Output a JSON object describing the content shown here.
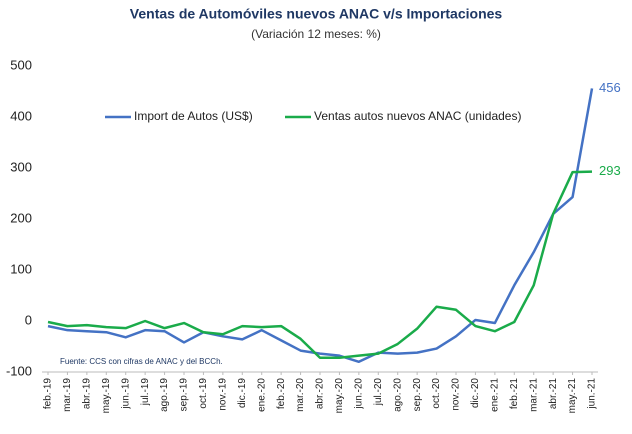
{
  "chart_data": {
    "type": "line",
    "title": "Ventas de Automóviles nuevos ANAC v/s Importaciones",
    "subtitle": "(Variación 12 meses: %)",
    "note": "Fuente: CCS con cifras de ANAC y del BCCh.",
    "categories": [
      "feb.-19",
      "mar.-19",
      "abr.-19",
      "may.-19",
      "jun.-19",
      "jul.-19",
      "ago.-19",
      "sep.-19",
      "oct.-19",
      "nov.-19",
      "dic.-19",
      "ene.-20",
      "feb.-20",
      "mar.-20",
      "abr.-20",
      "may.-20",
      "jun.-20",
      "jul.-20",
      "ago.-20",
      "sep.-20",
      "oct.-20",
      "nov.-20",
      "dic.-20",
      "ene.-21",
      "feb.-21",
      "mar.-21",
      "abr.-21",
      "may.-21",
      "jun.-21"
    ],
    "series": [
      {
        "name": "Import de Autos (US$)",
        "color": "#4472c4",
        "values": [
          -10,
          -18,
          -20,
          -22,
          -32,
          -18,
          -20,
          -42,
          -22,
          -30,
          -36,
          -18,
          -38,
          -58,
          -64,
          -68,
          -80,
          -62,
          -64,
          -62,
          -54,
          -30,
          2,
          -4,
          70,
          135,
          210,
          243,
          456
        ]
      },
      {
        "name": "Ventas autos nuevos ANAC (unidades)",
        "color": "#1aab4a",
        "values": [
          -2,
          -10,
          -8,
          -12,
          -14,
          0,
          -14,
          -4,
          -22,
          -26,
          -10,
          -12,
          -10,
          -35,
          -72,
          -72,
          -68,
          -64,
          -45,
          -15,
          28,
          22,
          -10,
          -20,
          -2,
          70,
          210,
          292,
          293
        ]
      }
    ],
    "ylim": [
      -100,
      500
    ],
    "yticks": [
      -100,
      0,
      100,
      200,
      300,
      400,
      500
    ],
    "grid": false,
    "legend": "top"
  }
}
